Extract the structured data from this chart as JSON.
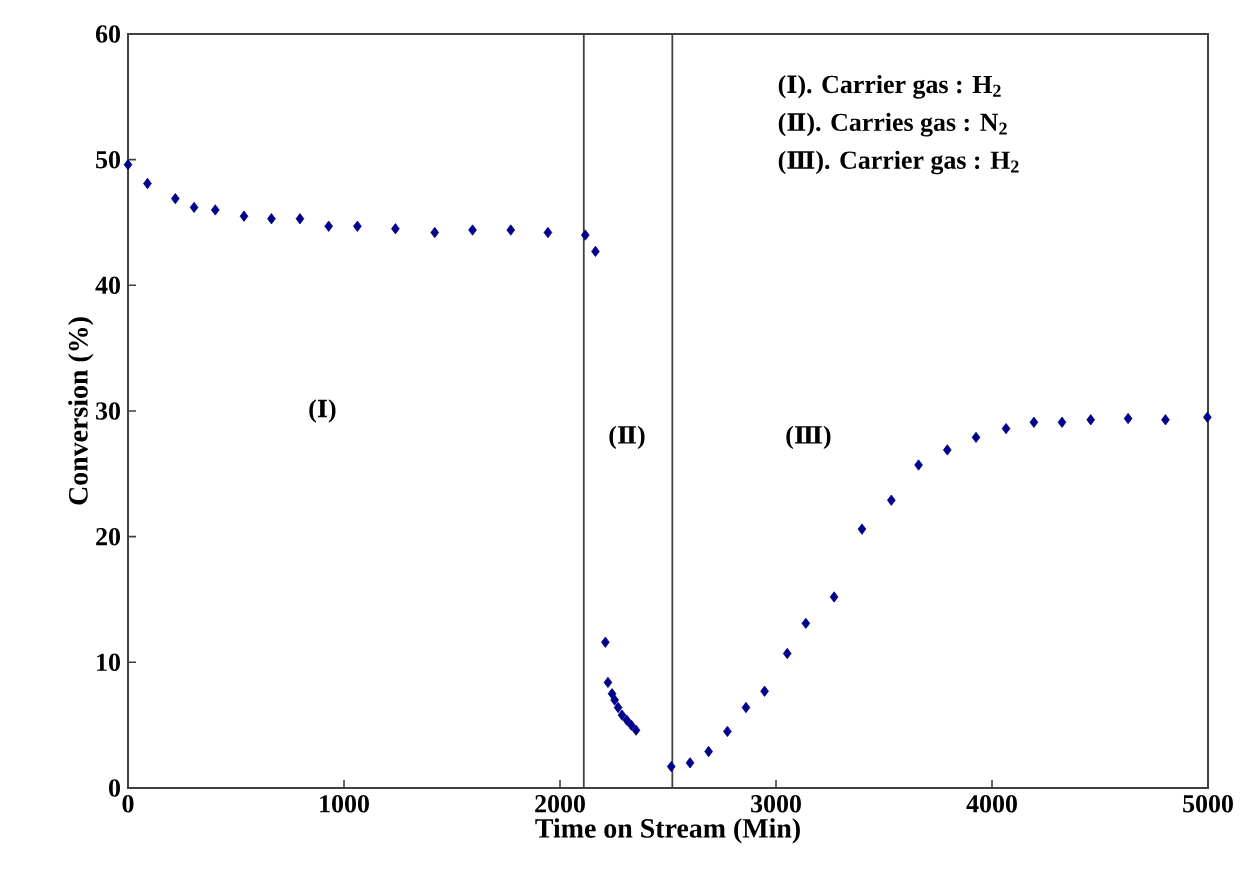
{
  "chart_data": {
    "type": "scatter",
    "xlabel": "Time  on Stream (Min)",
    "ylabel": "Conversion (%)",
    "xlim": [
      0,
      5000
    ],
    "ylim": [
      0,
      60
    ],
    "xticks": [
      0,
      1000,
      2000,
      3000,
      4000,
      5000
    ],
    "yticks": [
      0,
      10,
      20,
      30,
      40,
      50,
      60
    ],
    "marker": "diamond",
    "grid": false,
    "series": [
      {
        "color": "#00008b",
        "x": [
          0,
          90,
          219,
          306,
          404,
          537,
          664,
          796,
          929,
          1062,
          1238,
          1420,
          1595,
          1772,
          1944,
          2117,
          2164,
          2210,
          2222,
          2241,
          2253,
          2269,
          2287,
          2309,
          2330,
          2352,
          2515,
          2602,
          2688,
          2775,
          2861,
          2947,
          3052,
          3138,
          3269,
          3398,
          3534,
          3660,
          3793,
          3926,
          4065,
          4194,
          4324,
          4457,
          4630,
          4803,
          4997
        ],
        "values": [
          49.6,
          48.1,
          46.9,
          46.2,
          46.0,
          45.5,
          45.3,
          45.3,
          44.7,
          44.7,
          44.5,
          44.2,
          44.4,
          44.4,
          44.2,
          44.0,
          42.7,
          11.6,
          8.4,
          7.5,
          7.0,
          6.4,
          5.8,
          5.4,
          5.0,
          4.6,
          1.7,
          2.0,
          2.9,
          4.5,
          6.4,
          7.7,
          10.7,
          13.1,
          15.2,
          20.6,
          22.9,
          25.7,
          26.9,
          27.9,
          28.6,
          29.1,
          29.1,
          29.3,
          29.4,
          29.3,
          29.5
        ]
      }
    ],
    "ref_lines": [
      {
        "axis": "x",
        "value": 2110,
        "color": "#404040"
      },
      {
        "axis": "x",
        "value": 2520,
        "color": "#404040"
      }
    ],
    "annotations": [
      "(Ⅰ)",
      "(Ⅱ)",
      "(Ⅲ)",
      "(Ⅰ). Carrier gas  : H$_{2}$",
      "(Ⅱ). Carries gas  : N$_{2}$",
      "(Ⅲ). Carrier gas  : H$_{2}$"
    ]
  }
}
